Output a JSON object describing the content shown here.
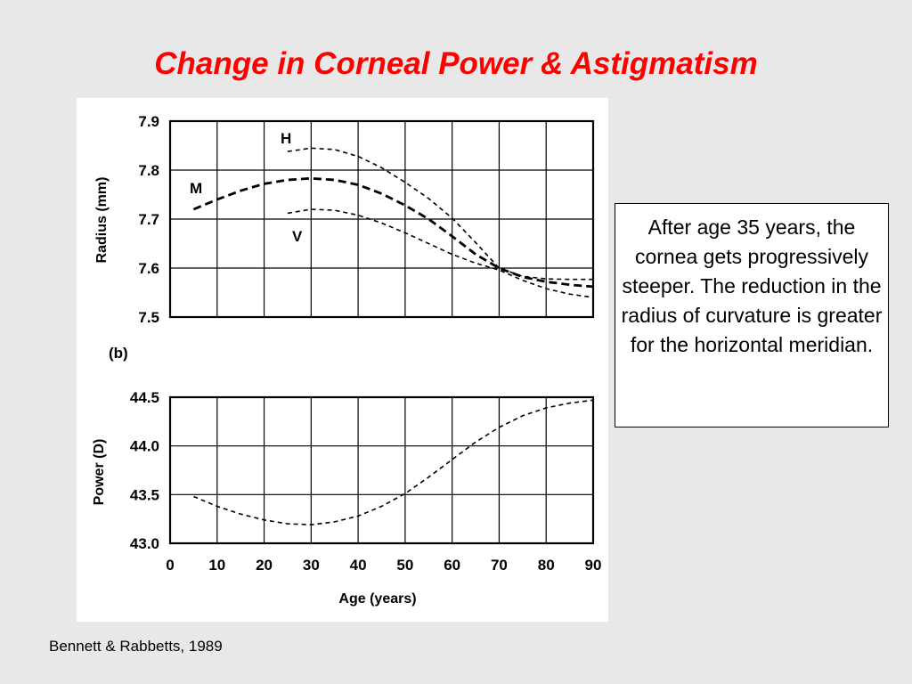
{
  "slide": {
    "title": "Change in Corneal Power & Astigmatism",
    "note": "After age 35 years, the cornea gets progressively steeper. The reduction in the radius of curvature is greater for the horizontal meridian.",
    "citation": "Bennett & Rabbetts, 1989"
  },
  "colors": {
    "title": "#ff0000",
    "curve": "#000000",
    "grid": "#000000"
  },
  "chart_data": [
    {
      "type": "line",
      "panel_label": "",
      "xlabel": "",
      "ylabel": "Radius (mm)",
      "xlim": [
        0,
        90
      ],
      "ylim": [
        7.5,
        7.9
      ],
      "x_gridlines": [
        0,
        10,
        20,
        30,
        40,
        50,
        60,
        70,
        80,
        90
      ],
      "y_ticks": [
        "7.9",
        "7.8",
        "7.7",
        "7.6",
        "7.5"
      ],
      "y_tick_values": [
        7.9,
        7.8,
        7.7,
        7.6,
        7.5
      ],
      "grid": true,
      "series": [
        {
          "name": "H",
          "style": "dashed-thin",
          "x": [
            25,
            30,
            35,
            40,
            45,
            50,
            55,
            60,
            65,
            70,
            75,
            80,
            85,
            90
          ],
          "y": [
            7.838,
            7.845,
            7.842,
            7.828,
            7.805,
            7.775,
            7.742,
            7.702,
            7.652,
            7.6,
            7.583,
            7.578,
            7.577,
            7.577
          ]
        },
        {
          "name": "M",
          "style": "dashed-thick",
          "x": [
            5,
            10,
            15,
            20,
            25,
            30,
            35,
            40,
            45,
            50,
            55,
            60,
            65,
            70,
            75,
            80,
            85,
            90
          ],
          "y": [
            7.72,
            7.74,
            7.758,
            7.772,
            7.78,
            7.783,
            7.78,
            7.77,
            7.752,
            7.728,
            7.7,
            7.665,
            7.628,
            7.6,
            7.582,
            7.572,
            7.566,
            7.562
          ]
        },
        {
          "name": "V",
          "style": "dashed-thin",
          "x": [
            25,
            30,
            35,
            40,
            45,
            50,
            55,
            60,
            65,
            70,
            75,
            80,
            85,
            90
          ],
          "y": [
            7.712,
            7.72,
            7.718,
            7.708,
            7.692,
            7.672,
            7.65,
            7.628,
            7.61,
            7.596,
            7.575,
            7.558,
            7.547,
            7.54
          ]
        }
      ]
    },
    {
      "type": "line",
      "panel_label": "(b)",
      "xlabel": "Age (years)",
      "ylabel": "Power (D)",
      "xlim": [
        0,
        90
      ],
      "ylim": [
        43.0,
        44.5
      ],
      "x_ticks": [
        "0",
        "10",
        "20",
        "30",
        "40",
        "50",
        "60",
        "70",
        "80",
        "90"
      ],
      "x_tick_values": [
        0,
        10,
        20,
        30,
        40,
        50,
        60,
        70,
        80,
        90
      ],
      "y_ticks": [
        "44.5",
        "44.0",
        "43.5",
        "43.0"
      ],
      "y_tick_values": [
        44.5,
        44.0,
        43.5,
        43.0
      ],
      "grid": true,
      "series": [
        {
          "name": "",
          "style": "dashed-thin",
          "x": [
            5,
            10,
            15,
            20,
            25,
            30,
            35,
            40,
            45,
            50,
            55,
            60,
            65,
            70,
            75,
            80,
            85,
            90
          ],
          "y": [
            43.48,
            43.38,
            43.3,
            43.24,
            43.2,
            43.19,
            43.22,
            43.28,
            43.38,
            43.51,
            43.68,
            43.86,
            44.04,
            44.19,
            44.31,
            44.39,
            44.44,
            44.47
          ]
        }
      ]
    }
  ]
}
